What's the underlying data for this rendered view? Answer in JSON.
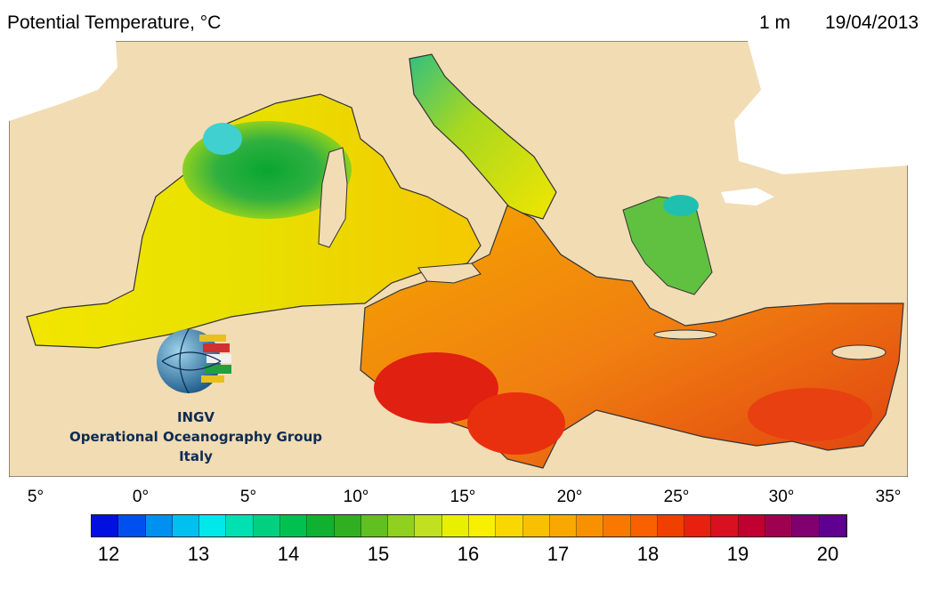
{
  "header": {
    "title": "Potential Temperature, °C",
    "depth": "1 m",
    "date": "19/04/2013"
  },
  "map": {
    "longitude_labels": [
      "5°",
      "0°",
      "5°",
      "10°",
      "15°",
      "20°",
      "25°",
      "30°",
      "35°"
    ],
    "land_color": "#f2dcb4",
    "coast_color": "#2b2b2b",
    "colors": {
      "cold": "#00b060",
      "mid": "#f2e600",
      "warm": "#f5a000",
      "hot": "#e01e10"
    }
  },
  "logo": {
    "line1": "INGV",
    "line2": "Operational Oceanography Group",
    "line3": "Italy"
  },
  "colorbar": {
    "labels": [
      "12",
      "13",
      "14",
      "15",
      "16",
      "17",
      "18",
      "19",
      "20"
    ],
    "colors": [
      "#0010e0",
      "#0050f0",
      "#0090f0",
      "#00c0f0",
      "#00e8e8",
      "#00e0b0",
      "#00d080",
      "#00c050",
      "#10b030",
      "#30b020",
      "#60c020",
      "#90d020",
      "#c0e020",
      "#e8f000",
      "#f8f000",
      "#f8d800",
      "#f8c000",
      "#f8a800",
      "#f89000",
      "#f87800",
      "#f86000",
      "#f04000",
      "#e82010",
      "#d81020",
      "#c00030",
      "#a00050",
      "#800070",
      "#600090"
    ]
  }
}
